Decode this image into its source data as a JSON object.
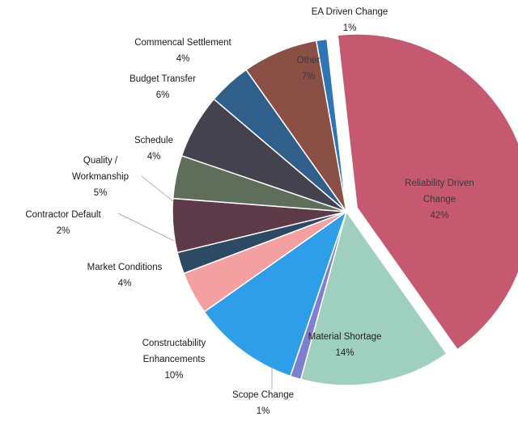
{
  "chart_data": {
    "type": "pie",
    "title": "",
    "slices": [
      {
        "label": "EA Driven Change",
        "pct_label": "1%",
        "value": 1,
        "color": "#2e75b6"
      },
      {
        "label": "Reliability Driven Change",
        "pct_label": "42%",
        "value": 42,
        "color": "#c4596f"
      },
      {
        "label": "Material Shortage",
        "pct_label": "14%",
        "value": 14,
        "color": "#9ecfbf"
      },
      {
        "label": "Scope Change",
        "pct_label": "1%",
        "value": 1,
        "color": "#7f7fcf"
      },
      {
        "label": "Constructability Enhancements",
        "pct_label": "10%",
        "value": 10,
        "color": "#2f9ee8"
      },
      {
        "label": "Market Conditions",
        "pct_label": "4%",
        "value": 4,
        "color": "#f4a0a0"
      },
      {
        "label": "Contractor Default",
        "pct_label": "2%",
        "value": 2,
        "color": "#2d4a64"
      },
      {
        "label": "Quality / Workmanship",
        "pct_label": "5%",
        "value": 5,
        "color": "#5c3a48"
      },
      {
        "label": "Schedule",
        "pct_label": "4%",
        "value": 4,
        "color": "#5e6e5a"
      },
      {
        "label": "Budget Transfer",
        "pct_label": "6%",
        "value": 6,
        "color": "#45424f"
      },
      {
        "label": "Commencal Settlement",
        "pct_label": "4%",
        "value": 4,
        "color": "#2f5f8a"
      },
      {
        "label": "Other",
        "pct_label": "7%",
        "value": 7,
        "color": "#8a4f45"
      }
    ]
  }
}
